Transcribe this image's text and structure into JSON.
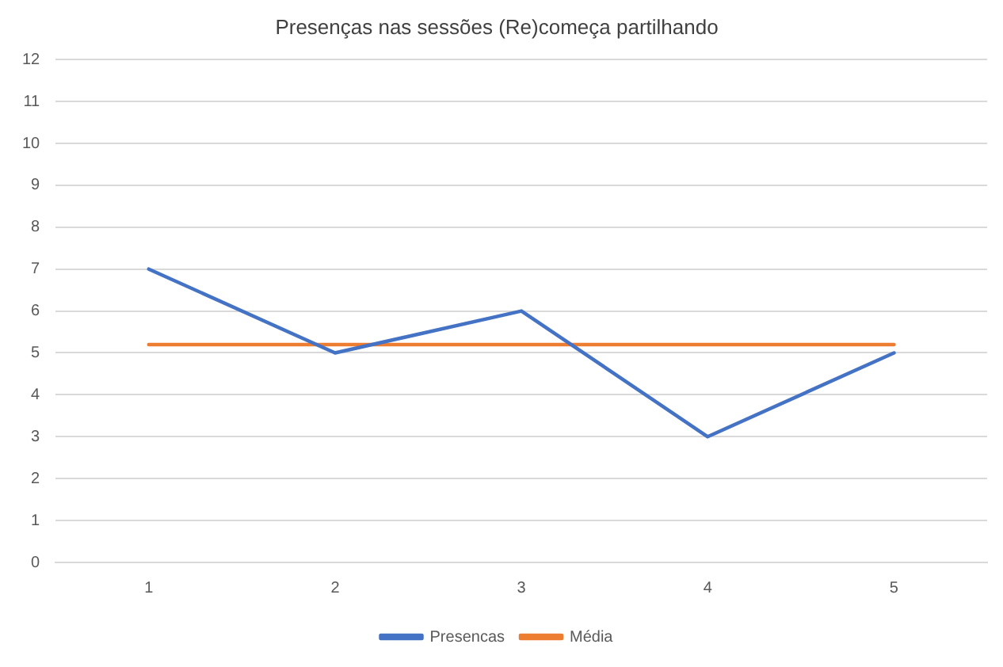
{
  "chart_data": {
    "type": "line",
    "title": "Presenças nas sessões (Re)começa partilhando",
    "categories": [
      "1",
      "2",
      "3",
      "4",
      "5"
    ],
    "series": [
      {
        "name": "Presencas",
        "color": "#4472c4",
        "values": [
          7,
          5,
          6,
          3,
          5
        ]
      },
      {
        "name": "Média",
        "color": "#ed7d31",
        "values": [
          5.2,
          5.2,
          5.2,
          5.2,
          5.2
        ]
      }
    ],
    "ylim": [
      0,
      12
    ],
    "yticks": [
      0,
      1,
      2,
      3,
      4,
      5,
      6,
      7,
      8,
      9,
      10,
      11,
      12
    ],
    "grid": "y",
    "legend": "bottom",
    "marker": "none",
    "line_style": "solid"
  }
}
